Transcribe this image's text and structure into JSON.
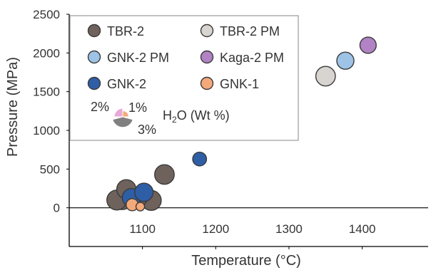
{
  "chart_data": {
    "type": "scatter",
    "subtype": "bubble",
    "xlabel": "Temperature (°C)",
    "ylabel": "Pressure (MPa)",
    "xlim": [
      1000,
      1490
    ],
    "ylim": [
      -500,
      2500
    ],
    "xticks": [
      "1100",
      "1200",
      "1300",
      "1400"
    ],
    "yticks": [
      "0",
      "500",
      "1000",
      "1500",
      "2000",
      "2500"
    ],
    "xtick_values": [
      1100,
      1200,
      1300,
      1400
    ],
    "ytick_values": [
      0,
      500,
      1000,
      1500,
      2000,
      2500
    ],
    "zero_line": true,
    "grid": false,
    "legend_placement": "top-left",
    "size_variable": {
      "label_prefix": "H",
      "label_subscript": "2",
      "label_suffix": "O (Wt %)",
      "reference_values": [
        2,
        1,
        3
      ],
      "reference_labels": [
        "2%",
        "1%",
        "3%"
      ]
    },
    "series": [
      {
        "name": "TBR-2",
        "color": "#6f625d",
        "points": [
          {
            "x": 1065,
            "y": 100,
            "size": 2.7
          },
          {
            "x": 1072,
            "y": 110,
            "size": 2.9
          },
          {
            "x": 1078,
            "y": 240,
            "size": 2.5
          },
          {
            "x": 1083,
            "y": 160,
            "size": 2.8
          },
          {
            "x": 1093,
            "y": 130,
            "size": 2.6
          },
          {
            "x": 1112,
            "y": 95,
            "size": 2.7
          },
          {
            "x": 1130,
            "y": 430,
            "size": 2.6
          }
        ]
      },
      {
        "name": "TBR-2 PM",
        "color": "#d8d4d0",
        "points": [
          {
            "x": 1350,
            "y": 1700,
            "size": 2.6
          }
        ]
      },
      {
        "name": "GNK-2 PM",
        "color": "#9dc3e6",
        "points": [
          {
            "x": 1377,
            "y": 1900,
            "size": 2.0
          }
        ]
      },
      {
        "name": "Kaga-2 PM",
        "color": "#b283c4",
        "points": [
          {
            "x": 1408,
            "y": 2100,
            "size": 1.8
          }
        ]
      },
      {
        "name": "GNK-2",
        "color": "#2e5ea6",
        "points": [
          {
            "x": 1085,
            "y": 130,
            "size": 2.3
          },
          {
            "x": 1102,
            "y": 200,
            "size": 2.3
          },
          {
            "x": 1178,
            "y": 630,
            "size": 1.3
          }
        ]
      },
      {
        "name": "GNK-1",
        "color": "#f4a97a",
        "points": [
          {
            "x": 1086,
            "y": 40,
            "size": 1.0
          },
          {
            "x": 1097,
            "y": 15,
            "size": 0.5
          }
        ]
      }
    ]
  }
}
